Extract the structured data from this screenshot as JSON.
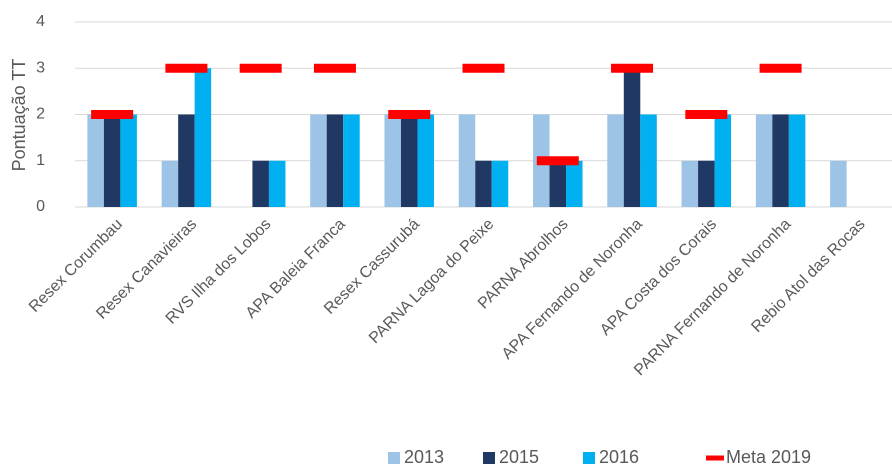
{
  "chart_data": {
    "type": "bar",
    "y_label": "Pontuação TT",
    "categories": [
      "Resex Corumbau",
      "Resex Canavieiras",
      "RVS Ilha dos Lobos",
      "APA Baleia Franca",
      "Resex Cassurubá",
      "PARNA Lagoa do Peixe",
      "PARNA Abrolhos",
      "APA Fernando de Noronha",
      "APA Costa dos Corais",
      "PARNA Fernando de Noronha",
      "Rebio Atol das Rocas"
    ],
    "series": [
      {
        "name": "2013",
        "color": "#9dc3e6",
        "values": [
          2,
          1,
          null,
          2,
          2,
          2,
          2,
          2,
          1,
          2,
          1
        ]
      },
      {
        "name": "2015",
        "color": "#203864",
        "values": [
          2,
          2,
          1,
          2,
          2,
          1,
          1,
          3,
          1,
          2,
          null
        ]
      },
      {
        "name": "2016",
        "color": "#00b0f0",
        "values": [
          2,
          3,
          1,
          2,
          2,
          1,
          1,
          2,
          2,
          2,
          null
        ]
      },
      {
        "name": "Meta 2019",
        "color": "#ff0000",
        "marker": "dash",
        "values": [
          2,
          3,
          3,
          3,
          2,
          3,
          1,
          3,
          2,
          3,
          null
        ]
      }
    ],
    "ylim": [
      0,
      4
    ],
    "yticks": [
      0,
      1,
      2,
      3,
      4
    ],
    "grid": true,
    "legend": "bottom"
  }
}
